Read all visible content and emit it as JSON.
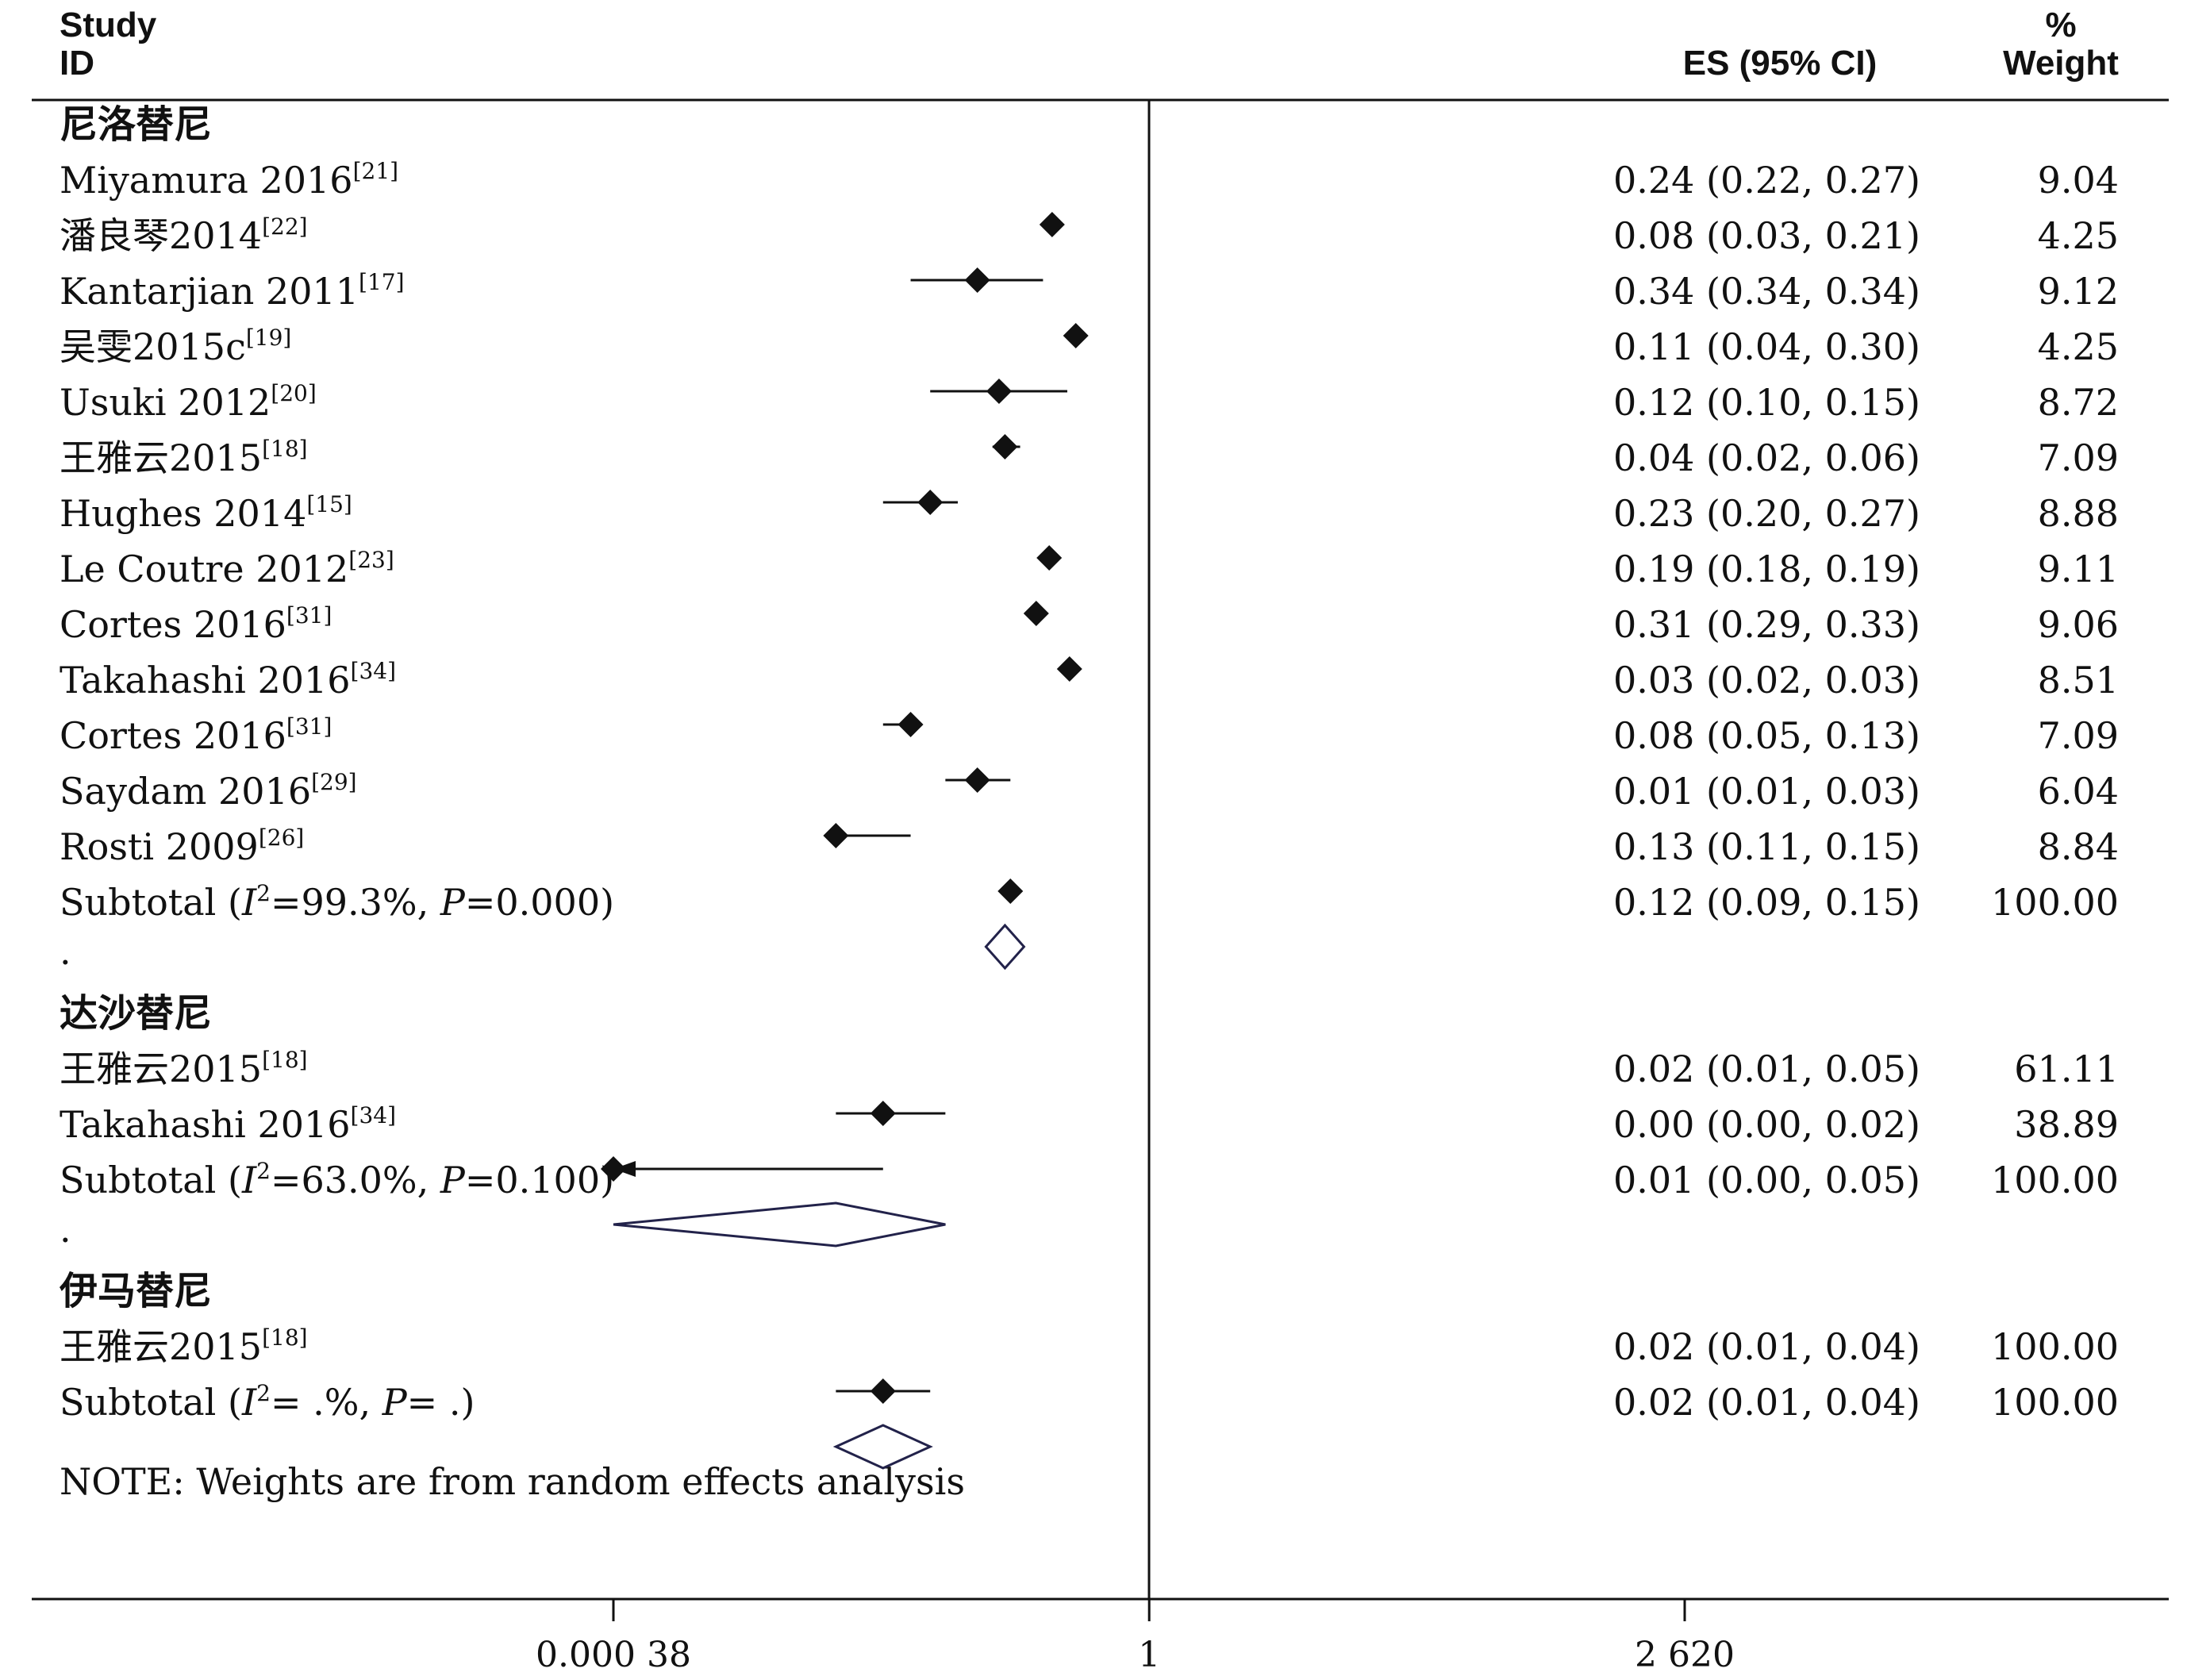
{
  "headers": {
    "study_line1": "Study",
    "study_line2": "ID",
    "es": "ES (95% CI)",
    "weight_line1": "%",
    "weight_line2": "Weight"
  },
  "chart_data": {
    "type": "forest",
    "x_scale": "log",
    "xlim": [
      0.00038,
      2620
    ],
    "null_line": 1,
    "xticks": [
      "0.000 38",
      "1",
      "2 620"
    ],
    "groups": [
      {
        "name": "尼洛替尼",
        "studies": [
          {
            "study": "Miyamura 2016",
            "ref": "[21]",
            "es": 0.24,
            "lo": 0.22,
            "hi": 0.27,
            "es_text": "0.24 (0.22, 0.27)",
            "weight": "9.04"
          },
          {
            "study": "潘良琴2014",
            "ref": "[22]",
            "es": 0.08,
            "lo": 0.03,
            "hi": 0.21,
            "es_text": "0.08 (0.03, 0.21)",
            "weight": "4.25"
          },
          {
            "study": "Kantarjian 2011",
            "ref": "[17]",
            "es": 0.34,
            "lo": 0.34,
            "hi": 0.34,
            "es_text": "0.34 (0.34, 0.34)",
            "weight": "9.12"
          },
          {
            "study": "吴雯2015c",
            "ref": "[19]",
            "es": 0.11,
            "lo": 0.04,
            "hi": 0.3,
            "es_text": "0.11 (0.04, 0.30)",
            "weight": "4.25"
          },
          {
            "study": "Usuki 2012",
            "ref": "[20]",
            "es": 0.12,
            "lo": 0.1,
            "hi": 0.15,
            "es_text": "0.12 (0.10, 0.15)",
            "weight": "8.72"
          },
          {
            "study": "王雅云2015",
            "ref": "[18]",
            "es": 0.04,
            "lo": 0.02,
            "hi": 0.06,
            "es_text": "0.04 (0.02, 0.06)",
            "weight": "7.09"
          },
          {
            "study": "Hughes 2014",
            "ref": "[15]",
            "es": 0.23,
            "lo": 0.2,
            "hi": 0.27,
            "es_text": "0.23 (0.20, 0.27)",
            "weight": "8.88"
          },
          {
            "study": "Le Coutre 2012",
            "ref": "[23]",
            "es": 0.19,
            "lo": 0.18,
            "hi": 0.19,
            "es_text": "0.19 (0.18, 0.19)",
            "weight": "9.11"
          },
          {
            "study": "Cortes 2016",
            "ref": "[31]",
            "es": 0.31,
            "lo": 0.29,
            "hi": 0.33,
            "es_text": "0.31 (0.29, 0.33)",
            "weight": "9.06"
          },
          {
            "study": "Takahashi 2016",
            "ref": "[34]",
            "es": 0.03,
            "lo": 0.02,
            "hi": 0.03,
            "es_text": "0.03 (0.02, 0.03)",
            "weight": "8.51"
          },
          {
            "study": "Cortes 2016",
            "ref": "[31]",
            "es": 0.08,
            "lo": 0.05,
            "hi": 0.13,
            "es_text": "0.08 (0.05, 0.13)",
            "weight": "7.09"
          },
          {
            "study": "Saydam 2016",
            "ref": "[29]",
            "es": 0.01,
            "lo": 0.01,
            "hi": 0.03,
            "es_text": "0.01 (0.01, 0.03)",
            "weight": "6.04"
          },
          {
            "study": "Rosti 2009",
            "ref": "[26]",
            "es": 0.13,
            "lo": 0.11,
            "hi": 0.15,
            "es_text": "0.13 (0.11, 0.15)",
            "weight": "8.84"
          }
        ],
        "subtotal": {
          "label": "Subtotal",
          "i2": "=99.3%",
          "p": "=0.000",
          "es": 0.12,
          "lo": 0.09,
          "hi": 0.15,
          "es_text": "0.12 (0.09, 0.15)",
          "weight": "100.00"
        }
      },
      {
        "name": "达沙替尼",
        "studies": [
          {
            "study": "王雅云2015",
            "ref": "[18]",
            "es": 0.02,
            "lo": 0.01,
            "hi": 0.05,
            "es_text": "0.02 (0.01, 0.05)",
            "weight": "61.11"
          },
          {
            "study": "Takahashi 2016",
            "ref": "[34]",
            "es": 0.0,
            "lo": 0.0,
            "hi": 0.02,
            "es_text": "0.00 (0.00, 0.02)",
            "weight": "38.89"
          }
        ],
        "subtotal": {
          "label": "Subtotal",
          "i2": "=63.0%",
          "p": "=0.100",
          "es": 0.01,
          "lo": 0.0,
          "hi": 0.05,
          "es_text": "0.01 (0.00, 0.05)",
          "weight": "100.00"
        }
      },
      {
        "name": "伊马替尼",
        "studies": [
          {
            "study": "王雅云2015",
            "ref": "[18]",
            "es": 0.02,
            "lo": 0.01,
            "hi": 0.04,
            "es_text": "0.02 (0.01, 0.04)",
            "weight": "100.00"
          }
        ],
        "subtotal": {
          "label": "Subtotal",
          "i2": "= .%",
          "p": "= .",
          "es": 0.02,
          "lo": 0.01,
          "hi": 0.04,
          "es_text": "0.02 (0.01, 0.04)",
          "weight": "100.00"
        }
      }
    ],
    "note": "NOTE: Weights are from random effects analysis"
  }
}
